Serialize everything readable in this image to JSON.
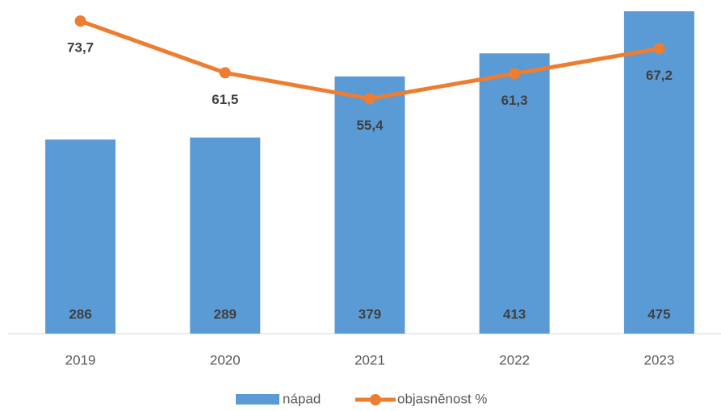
{
  "chart_data": {
    "type": "bar_line",
    "categories": [
      "2019",
      "2020",
      "2021",
      "2022",
      "2023"
    ],
    "series": [
      {
        "name": "nápad",
        "type": "bar",
        "color": "#5b9bd5",
        "values": [
          286,
          289,
          379,
          413,
          475
        ]
      },
      {
        "name": "objasněnost %",
        "type": "line",
        "axis": "y2",
        "color": "#ed7d31",
        "values": [
          73.7,
          61.5,
          55.4,
          61.3,
          67.2
        ],
        "value_labels": [
          "73,7",
          "61,5",
          "55,4",
          "61,3",
          "67,2"
        ]
      }
    ],
    "ylim": [
      0,
      475
    ],
    "y2lim": [
      0,
      76
    ],
    "legend": "bottom"
  }
}
